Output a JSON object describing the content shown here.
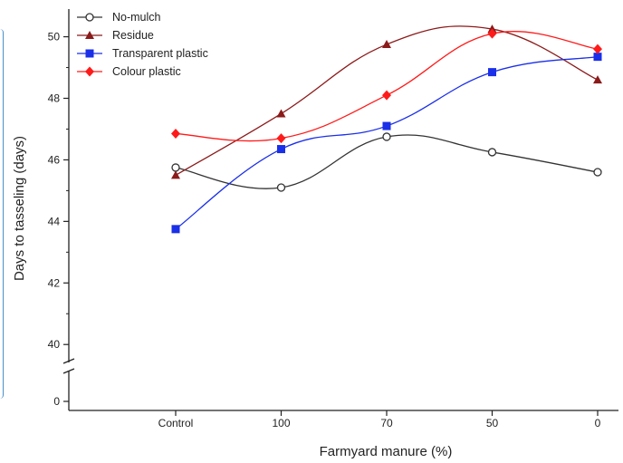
{
  "chart_data": {
    "type": "line",
    "xlabel": "Farmyard manure (%)",
    "ylabel": "Days to tasseling (days)",
    "categories": [
      "Control",
      "100",
      "70",
      "50",
      "0"
    ],
    "y_ticks": [
      0,
      40,
      42,
      44,
      46,
      48,
      50
    ],
    "y_axis_break": [
      0,
      40
    ],
    "ylim": [
      39.3,
      50.9
    ],
    "grid": false,
    "legend_position": "top-left",
    "series": [
      {
        "name": "No-mulch",
        "marker": "open-circle",
        "color": "#333333",
        "values": [
          45.75,
          45.1,
          46.75,
          46.25,
          45.6
        ]
      },
      {
        "name": "Residue",
        "marker": "triangle",
        "color": "#8b1a1a",
        "values": [
          45.5,
          47.5,
          49.75,
          50.25,
          48.6
        ]
      },
      {
        "name": "Transparent plastic",
        "marker": "square",
        "color": "#1a2fe8",
        "values": [
          43.75,
          46.35,
          47.1,
          48.85,
          49.35
        ]
      },
      {
        "name": "Colour plastic",
        "marker": "diamond",
        "color": "#ff1a1a",
        "values": [
          46.85,
          46.7,
          48.1,
          50.1,
          49.6
        ]
      }
    ]
  }
}
